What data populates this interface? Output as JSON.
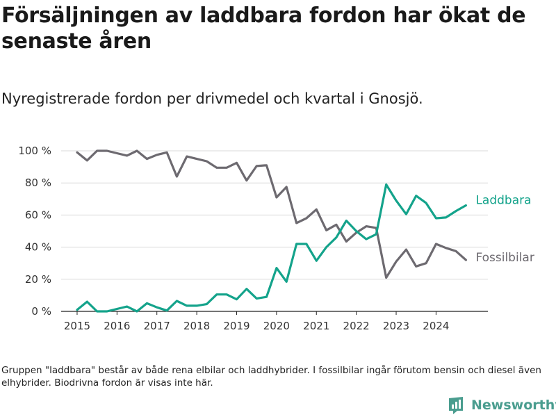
{
  "title": "Försäljningen av laddbara fordon har ökat de senaste åren",
  "subtitle": "Nyregistrerade fordon per drivmedel och kvartal i Gnosjö.",
  "footnote": "Gruppen \"laddbara\" består av både rena elbilar och laddhybrider. I fossilbilar ingår förutom bensin och diesel även elhybrider. Biodrivna fordon är visas inte här.",
  "brand": {
    "name": "Newsworthy",
    "icon": "newsworthy-logo-icon"
  },
  "colors": {
    "laddbara": "#14a38b",
    "fossil": "#6d6a70",
    "grid": "#d9d9d9",
    "axis": "#222222",
    "brand": "#4a9d8f"
  },
  "chart_data": {
    "type": "line",
    "title": "Försäljningen av laddbara fordon har ökat de senaste åren",
    "xlabel": "",
    "ylabel": "",
    "x_start": 2015.0,
    "x_step": 0.25,
    "xlim": [
      2014.6,
      2025.3
    ],
    "ylim": [
      0,
      100
    ],
    "x_ticks": [
      2015,
      2016,
      2017,
      2018,
      2019,
      2020,
      2021,
      2022,
      2023,
      2024
    ],
    "x_tick_labels": [
      "2015",
      "2016",
      "2017",
      "2018",
      "2019",
      "2020",
      "2021",
      "2022",
      "2023",
      "2024"
    ],
    "y_ticks": [
      0,
      20,
      40,
      60,
      80,
      100
    ],
    "y_tick_labels": [
      "0 %",
      "20 %",
      "40 %",
      "60 %",
      "80 %",
      "100 %"
    ],
    "grid": true,
    "series": [
      {
        "name": "Laddbara",
        "values": [
          1,
          6,
          0,
          0,
          1.5,
          3,
          0,
          5,
          2.5,
          0.5,
          6.5,
          3.5,
          3.5,
          4.5,
          10.5,
          10.5,
          7.5,
          14,
          8,
          9,
          27,
          18.5,
          42,
          42,
          31.5,
          40,
          46,
          56.5,
          50,
          45,
          48,
          79,
          69,
          60.5,
          72,
          67.5,
          58,
          58.5,
          62.5,
          66
        ]
      },
      {
        "name": "Fossilbilar",
        "values": [
          99,
          94,
          100,
          100,
          98.5,
          97,
          100,
          95,
          97.5,
          99,
          84,
          96.5,
          95,
          93.5,
          89.5,
          89.5,
          92.5,
          81.5,
          90.5,
          91,
          71,
          77.5,
          55,
          58,
          63.5,
          50.5,
          54,
          43.5,
          49,
          53,
          52,
          21,
          31,
          38.5,
          28,
          30,
          42,
          39.5,
          37.5,
          32
        ]
      }
    ]
  }
}
